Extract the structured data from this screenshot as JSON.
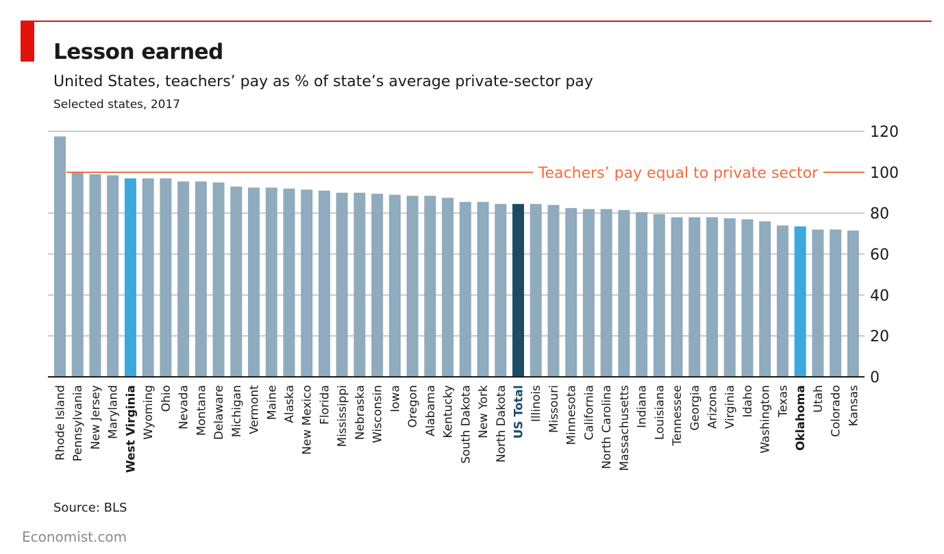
{
  "header": {
    "title": "Lesson earned",
    "subtitle": "United States, teachers’ pay as % of state’s average private-sector pay",
    "note": "Selected states, 2017"
  },
  "footer": {
    "source": "Source: BLS",
    "brand": "Economist.com"
  },
  "colors": {
    "accent_red": "#e3120b",
    "bar_default": "#8fabbd",
    "bar_highlight": "#3ea7de",
    "bar_total": "#1c4c64",
    "reference_line": "#f06c3f",
    "grid": "#c8c8c8",
    "plot_background": "#ffffff"
  },
  "chart_data": {
    "type": "bar",
    "title": "Lesson earned",
    "subtitle": "United States, teachers’ pay as % of state’s average private-sector pay",
    "xlabel": "",
    "ylabel": "",
    "ylim": [
      0,
      120
    ],
    "yticks": [
      0,
      20,
      40,
      60,
      80,
      100,
      120
    ],
    "grid": true,
    "y_axis_position": "right",
    "categories": [
      "Rhode Island",
      "Pennsylvania",
      "New Jersey",
      "Maryland",
      "West Virginia",
      "Wyoming",
      "Ohio",
      "Nevada",
      "Montana",
      "Delaware",
      "Michigan",
      "Vermont",
      "Maine",
      "Alaska",
      "New Mexico",
      "Florida",
      "Mississippi",
      "Nebraska",
      "Wisconsin",
      "Iowa",
      "Oregon",
      "Alabama",
      "Kentucky",
      "South Dakota",
      "New York",
      "North Dakota",
      "US Total",
      "Illinois",
      "Missouri",
      "Minnesota",
      "California",
      "North Carolina",
      "Massachusetts",
      "Indiana",
      "Louisiana",
      "Tennessee",
      "Georgia",
      "Arizona",
      "Virginia",
      "Idaho",
      "Washington",
      "Texas",
      "Oklahoma",
      "Utah",
      "Colorado",
      "Kansas"
    ],
    "values": [
      117.5,
      100,
      99,
      98.5,
      97,
      97,
      97,
      95.5,
      95.5,
      95,
      93,
      92.5,
      92.5,
      92,
      91.5,
      91,
      90,
      90,
      89.5,
      89,
      88.5,
      88.5,
      87.5,
      85.5,
      85.5,
      84.5,
      84.5,
      84.5,
      84,
      82.5,
      82,
      82,
      81.5,
      80.5,
      79.5,
      78,
      78,
      78,
      77.5,
      77,
      76,
      74,
      73.5,
      72,
      72,
      71.5
    ],
    "highlighted": [
      "West Virginia",
      "Oklahoma"
    ],
    "total_category": "US Total",
    "reference_line": {
      "value": 100,
      "label": "Teachers’ pay equal to private sector"
    }
  }
}
